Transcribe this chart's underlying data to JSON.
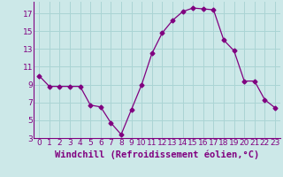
{
  "x": [
    0,
    1,
    2,
    3,
    4,
    5,
    6,
    7,
    8,
    9,
    10,
    11,
    12,
    13,
    14,
    15,
    16,
    17,
    18,
    19,
    20,
    21,
    22,
    23
  ],
  "y": [
    10.0,
    8.8,
    8.8,
    8.8,
    8.8,
    6.7,
    6.5,
    4.7,
    3.4,
    6.2,
    9.0,
    12.5,
    14.8,
    16.2,
    17.2,
    17.6,
    17.5,
    17.4,
    14.0,
    12.8,
    9.4,
    9.4,
    7.3,
    6.4
  ],
  "line_color": "#800080",
  "marker": "D",
  "marker_size": 2.5,
  "bg_color": "#cce8e8",
  "grid_color": "#aad4d4",
  "xlabel": "Windchill (Refroidissement éolien,°C)",
  "ylim": [
    3,
    18
  ],
  "xlim": [
    -0.5,
    23.5
  ],
  "yticks": [
    3,
    5,
    7,
    9,
    11,
    13,
    15,
    17
  ],
  "xticks": [
    0,
    1,
    2,
    3,
    4,
    5,
    6,
    7,
    8,
    9,
    10,
    11,
    12,
    13,
    14,
    15,
    16,
    17,
    18,
    19,
    20,
    21,
    22,
    23
  ],
  "tick_fontsize": 6.5,
  "xlabel_fontsize": 7.5
}
